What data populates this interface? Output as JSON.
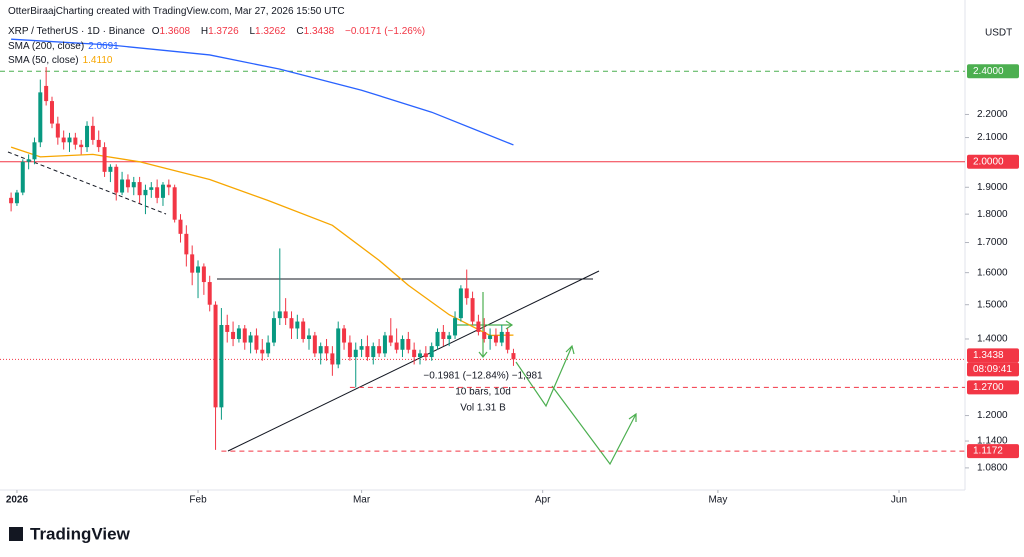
{
  "header": {
    "credit": "OtterBiraajCharting created with TradingView.com, Mar 27, 2026 15:50 UTC",
    "symbol": "XRP / TetherUS · 1D · Binance",
    "ohlc_labels": [
      "O",
      "H",
      "L",
      "C"
    ],
    "change": "−0.0171 (−1.26%)"
  },
  "chart_data": {
    "type": "candlestick",
    "log_scale": true,
    "grid": false,
    "up_color": "#089981",
    "down_color": "#f23645",
    "axis_unit": "USDT",
    "x": [
      0,
      1,
      2,
      3,
      4,
      5,
      6,
      7,
      8,
      9,
      10,
      11,
      12,
      13,
      14,
      15,
      16,
      17,
      18,
      19,
      20,
      21,
      22,
      23,
      24,
      25,
      26,
      27,
      28,
      29,
      30,
      31,
      32,
      33,
      34,
      35,
      36,
      37,
      38,
      39,
      40,
      41,
      42,
      43,
      44,
      45,
      46,
      47,
      48,
      49,
      50,
      51,
      52,
      53,
      54,
      55,
      56,
      57,
      58,
      59,
      60,
      61,
      62,
      63,
      64,
      65,
      66,
      67,
      68,
      69,
      70,
      71,
      72,
      73,
      74,
      75,
      76,
      77,
      78,
      79,
      80,
      81,
      82,
      83,
      84,
      85,
      86
    ],
    "open": [
      1.86,
      1.84,
      1.88,
      2.0,
      2.01,
      2.08,
      2.33,
      2.26,
      2.16,
      2.1,
      2.08,
      2.1,
      2.07,
      2.06,
      2.15,
      2.09,
      2.06,
      1.96,
      1.98,
      1.88,
      1.93,
      1.9,
      1.92,
      1.87,
      1.89,
      1.9,
      1.86,
      1.91,
      1.9,
      1.78,
      1.73,
      1.66,
      1.6,
      1.62,
      1.57,
      1.5,
      1.22,
      1.44,
      1.42,
      1.4,
      1.43,
      1.39,
      1.41,
      1.37,
      1.36,
      1.39,
      1.46,
      1.48,
      1.46,
      1.43,
      1.45,
      1.4,
      1.41,
      1.36,
      1.38,
      1.36,
      1.33,
      1.43,
      1.39,
      1.35,
      1.37,
      1.38,
      1.35,
      1.38,
      1.36,
      1.41,
      1.39,
      1.37,
      1.4,
      1.37,
      1.35,
      1.36,
      1.35,
      1.38,
      1.42,
      1.4,
      1.41,
      1.46,
      1.55,
      1.52,
      1.45,
      1.42,
      1.4,
      1.41,
      1.39,
      1.42,
      1.3608
    ],
    "high": [
      1.88,
      1.89,
      2.01,
      2.03,
      2.1,
      2.36,
      2.42,
      2.28,
      2.19,
      2.13,
      2.12,
      2.12,
      2.09,
      2.17,
      2.19,
      2.13,
      2.08,
      1.99,
      1.99,
      1.96,
      1.95,
      1.94,
      1.94,
      1.91,
      1.92,
      1.93,
      1.92,
      1.93,
      1.91,
      1.8,
      1.76,
      1.69,
      1.64,
      1.63,
      1.59,
      1.51,
      1.49,
      1.47,
      1.45,
      1.44,
      1.44,
      1.42,
      1.43,
      1.4,
      1.41,
      1.48,
      1.68,
      1.52,
      1.48,
      1.47,
      1.46,
      1.43,
      1.42,
      1.39,
      1.4,
      1.38,
      1.45,
      1.44,
      1.41,
      1.39,
      1.4,
      1.41,
      1.39,
      1.4,
      1.42,
      1.46,
      1.43,
      1.41,
      1.42,
      1.39,
      1.37,
      1.38,
      1.39,
      1.43,
      1.44,
      1.42,
      1.48,
      1.56,
      1.61,
      1.54,
      1.47,
      1.46,
      1.43,
      1.43,
      1.44,
      1.43,
      1.3726
    ],
    "low": [
      1.81,
      1.83,
      1.87,
      1.97,
      1.99,
      2.06,
      2.24,
      2.14,
      2.07,
      2.05,
      2.04,
      2.05,
      2.03,
      2.04,
      2.07,
      2.04,
      1.94,
      1.92,
      1.85,
      1.87,
      1.88,
      1.87,
      1.84,
      1.8,
      1.86,
      1.84,
      1.83,
      1.87,
      1.77,
      1.7,
      1.62,
      1.56,
      1.52,
      1.53,
      1.48,
      1.12,
      1.19,
      1.39,
      1.38,
      1.39,
      1.37,
      1.36,
      1.36,
      1.34,
      1.35,
      1.38,
      1.44,
      1.44,
      1.4,
      1.4,
      1.39,
      1.37,
      1.35,
      1.33,
      1.34,
      1.3,
      1.32,
      1.37,
      1.34,
      1.27,
      1.35,
      1.34,
      1.33,
      1.35,
      1.35,
      1.38,
      1.36,
      1.35,
      1.36,
      1.33,
      1.33,
      1.34,
      1.34,
      1.37,
      1.38,
      1.38,
      1.4,
      1.45,
      1.5,
      1.44,
      1.41,
      1.39,
      1.37,
      1.38,
      1.38,
      1.36,
      1.3262
    ],
    "close": [
      1.84,
      1.88,
      2.0,
      2.01,
      2.08,
      2.3,
      2.26,
      2.16,
      2.1,
      2.08,
      2.1,
      2.07,
      2.06,
      2.15,
      2.09,
      2.06,
      1.96,
      1.98,
      1.88,
      1.93,
      1.9,
      1.92,
      1.87,
      1.89,
      1.9,
      1.86,
      1.91,
      1.9,
      1.78,
      1.73,
      1.66,
      1.6,
      1.62,
      1.57,
      1.5,
      1.22,
      1.44,
      1.42,
      1.4,
      1.43,
      1.39,
      1.41,
      1.37,
      1.36,
      1.39,
      1.46,
      1.48,
      1.46,
      1.43,
      1.45,
      1.4,
      1.41,
      1.36,
      1.38,
      1.36,
      1.33,
      1.43,
      1.39,
      1.35,
      1.37,
      1.38,
      1.35,
      1.38,
      1.36,
      1.41,
      1.39,
      1.37,
      1.4,
      1.37,
      1.35,
      1.36,
      1.35,
      1.38,
      1.42,
      1.4,
      1.41,
      1.46,
      1.55,
      1.52,
      1.45,
      1.42,
      1.4,
      1.41,
      1.39,
      1.42,
      1.37,
      1.3438
    ],
    "overlays": [
      {
        "name": "SMA (200, close)",
        "color": "#2962ff",
        "x": [
          0,
          17,
          34,
          46,
          60,
          72,
          86
        ],
        "values": [
          2.56,
          2.53,
          2.48,
          2.41,
          2.31,
          2.21,
          2.0691
        ],
        "value_label": "2.0691"
      },
      {
        "name": "SMA (50, close)",
        "color": "#f7a600",
        "x": [
          0,
          5,
          14,
          22,
          34,
          44,
          55,
          63,
          68,
          75,
          82,
          86
        ],
        "values": [
          2.06,
          2.02,
          2.03,
          2.0,
          1.93,
          1.85,
          1.76,
          1.64,
          1.56,
          1.47,
          1.41,
          1.411
        ],
        "value_label": "1.4110"
      }
    ],
    "levels": [
      {
        "value": 2.4,
        "label": "2.4000",
        "color": "#4caf50",
        "style": "dashed",
        "from": -1.9
      },
      {
        "value": 2.0,
        "label": "2.0000",
        "color": "#f23645",
        "style": "solid",
        "from": -1.9
      },
      {
        "value": 1.27,
        "label": "1.2700",
        "color": "#f23645",
        "style": "dashed",
        "from": 58
      },
      {
        "value": 1.1172,
        "label": "1.1172",
        "color": "#f23645",
        "style": "dashed",
        "from": 36
      }
    ],
    "last_price": {
      "value": 1.3438,
      "label": "1.3438",
      "countdown": "08:09:41"
    },
    "xlim": [
      -1.9,
      163.3
    ],
    "xticks": [
      {
        "value": 1,
        "label": "2026"
      },
      {
        "value": 32,
        "label": "Feb"
      },
      {
        "value": 60,
        "label": "Mar"
      },
      {
        "value": 91,
        "label": "Apr"
      },
      {
        "value": 121,
        "label": "May"
      },
      {
        "value": 152,
        "label": "Jun"
      }
    ],
    "ylim": [
      1.033,
      2.77
    ],
    "yticks": [
      {
        "value": 2.2,
        "label": "2.2000"
      },
      {
        "value": 2.1,
        "label": "2.1000"
      },
      {
        "value": 1.9,
        "label": "1.9000"
      },
      {
        "value": 1.8,
        "label": "1.8000"
      },
      {
        "value": 1.7,
        "label": "1.7000"
      },
      {
        "value": 1.6,
        "label": "1.6000"
      },
      {
        "value": 1.5,
        "label": "1.5000"
      },
      {
        "value": 1.4,
        "label": "1.4000"
      },
      {
        "value": 1.2,
        "label": "1.2000"
      },
      {
        "value": 1.14,
        "label": "1.1400"
      },
      {
        "value": 1.08,
        "label": "1.0800"
      }
    ],
    "measure": [
      "−0.1981 (−12.84%) −1,981",
      "10 bars, 10d",
      "Vol 1.31 B"
    ]
  },
  "footer": {
    "logo": "TradingView"
  }
}
